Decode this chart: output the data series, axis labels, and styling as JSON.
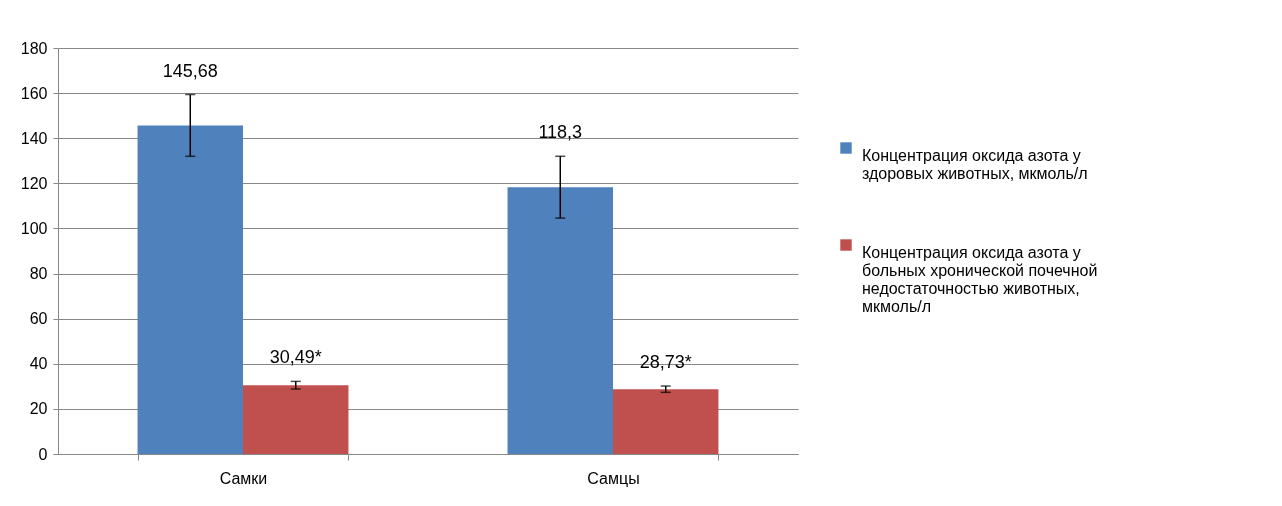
{
  "chart_data": {
    "type": "bar",
    "categories": [
      "Самки",
      "Самцы"
    ],
    "series": [
      {
        "name": "Концентрация оксида азота у здоровых животных, мкмоль/л",
        "color": "#4f81bd",
        "values": [
          145.68,
          118.3
        ],
        "errors": [
          13.7,
          13.7
        ],
        "value_labels": [
          "145,68",
          "118,3"
        ]
      },
      {
        "name": "Концентрация оксида азота у больных хронической почечной недостаточностью животных, мкмоль/л",
        "color": "#c0504d",
        "values": [
          30.49,
          28.73
        ],
        "errors": [
          1.7,
          1.4
        ],
        "value_labels": [
          "30,49*",
          "28,73*"
        ]
      }
    ],
    "ylim": [
      0,
      180
    ],
    "yticks": [
      0,
      20,
      40,
      60,
      80,
      100,
      120,
      140,
      160,
      180
    ],
    "grid": "y",
    "legend": "right"
  }
}
